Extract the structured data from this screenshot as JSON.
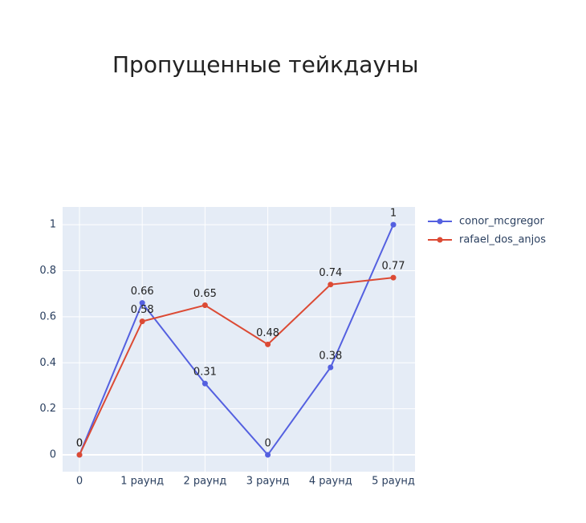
{
  "chart_data": {
    "type": "line",
    "title": "Пропущенные тейкдауны",
    "categories": [
      "0",
      "1 раунд",
      "2 раунд",
      "3 раунд",
      "4 раунд",
      "5 раунд"
    ],
    "series": [
      {
        "name": "conor_mcgregor",
        "color": "#5460e0",
        "values": [
          0,
          0.66,
          0.31,
          0,
          0.38,
          1
        ]
      },
      {
        "name": "rafael_dos_anjos",
        "color": "#dc4a34",
        "values": [
          0,
          0.58,
          0.65,
          0.48,
          0.74,
          0.77
        ]
      }
    ],
    "ylim": [
      -0.073,
      1.077
    ],
    "yticks": [
      0,
      0.2,
      0.4,
      0.6,
      0.8,
      1
    ],
    "grid": true
  }
}
